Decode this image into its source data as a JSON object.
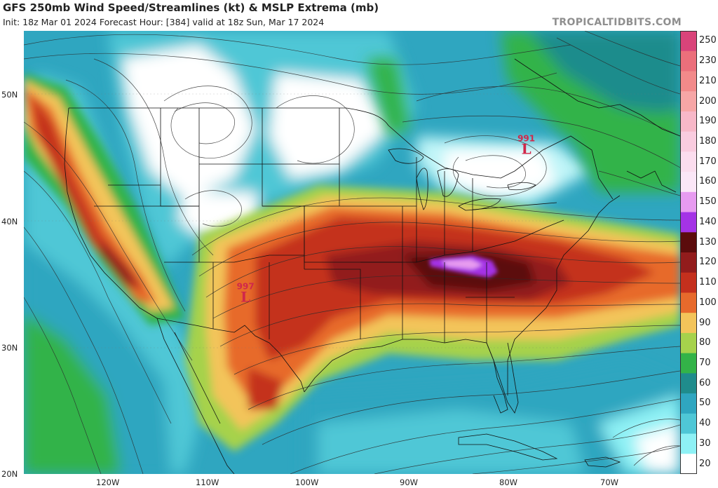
{
  "header": {
    "title": "GFS 250mb Wind Speed/Streamlines (kt) & MSLP Extrema (mb)",
    "subtitle": "Init: 18z Mar 01 2024   Forecast Hour: [384]   valid at 18z Sun, Mar 17 2024",
    "credit": "TROPICALTIDBITS.COM"
  },
  "axes": {
    "lat_labels": [
      "50N",
      "40N",
      "30N",
      "20N"
    ],
    "lon_labels": [
      "120W",
      "110W",
      "100W",
      "90W",
      "80W",
      "70W"
    ]
  },
  "pressure_centers": [
    {
      "type": "low",
      "symbol": "L",
      "value": "991",
      "lon": -78.0,
      "lat": 45.5
    },
    {
      "type": "low",
      "symbol": "L",
      "value": "997",
      "lon": -106.0,
      "lat": 33.8
    }
  ],
  "colorbar": {
    "labels": [
      "250",
      "230",
      "210",
      "200",
      "190",
      "180",
      "170",
      "160",
      "150",
      "140",
      "130",
      "120",
      "110",
      "100",
      "90",
      "80",
      "70",
      "60",
      "50",
      "40",
      "30",
      "20"
    ],
    "colors": [
      "#d9447a",
      "#eb6f7b",
      "#f28a8a",
      "#f6a6a6",
      "#f7b8c8",
      "#f9ccdf",
      "#fbddee",
      "#fbe7f7",
      "#e79bf0",
      "#a433e6",
      "#5b0c0c",
      "#921c1c",
      "#c4301d",
      "#e76a2c",
      "#f3c45a",
      "#a6d24c",
      "#33b348",
      "#1f8c8c",
      "#2fa6c0",
      "#4fc7d6",
      "#8ef1f5",
      "#ffffff"
    ]
  },
  "colors": {
    "low_marker": "#d0284a",
    "streamline": "#2b2b2b",
    "boundary": "#111111"
  }
}
